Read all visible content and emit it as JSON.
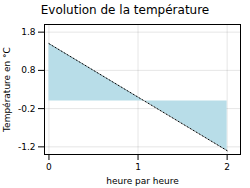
{
  "chart_data": {
    "type": "area",
    "title": "Evolution de la température",
    "xlabel": "heure par heure",
    "ylabel": "Température en °C",
    "x": [
      0,
      2
    ],
    "values": [
      1.5,
      -1.3
    ],
    "color": "#b8dde8",
    "line_style": "dotted",
    "xlim": [
      -0.05,
      2.15
    ],
    "xticks": [
      0,
      1,
      2
    ],
    "ylim": [
      -1.4,
      2.0
    ],
    "yticks": [
      -1.2,
      -0.2,
      0.8,
      1.8
    ],
    "grid": true
  }
}
